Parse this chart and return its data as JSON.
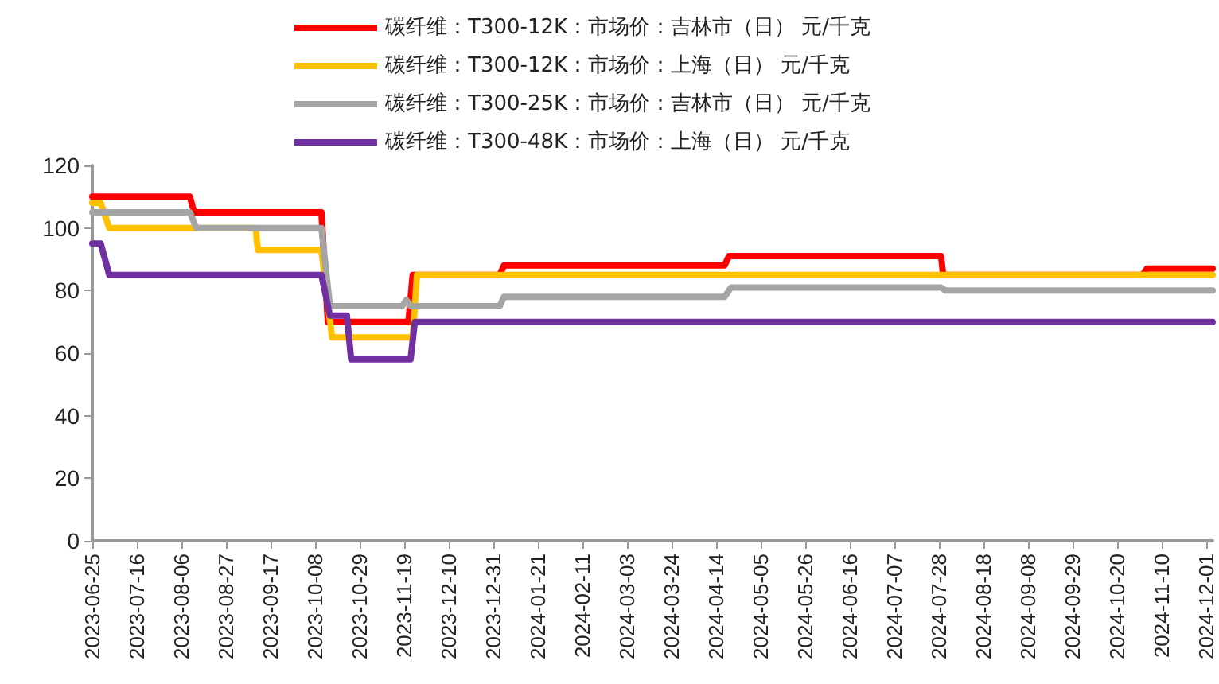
{
  "chart_data": {
    "type": "line",
    "legend": "top",
    "marker": "none",
    "line_style": "solid",
    "grid": false,
    "xlim": [
      "2023-06-25",
      "2024-12-04"
    ],
    "xticks": [
      "2023-06-25",
      "2023-07-16",
      "2023-08-06",
      "2023-08-27",
      "2023-09-17",
      "2023-10-08",
      "2023-10-29",
      "2023-11-19",
      "2023-12-10",
      "2023-12-31",
      "2024-01-21",
      "2024-02-11",
      "2024-03-03",
      "2024-03-24",
      "2024-04-14",
      "2024-05-05",
      "2024-05-26",
      "2024-06-16",
      "2024-07-07",
      "2024-07-28",
      "2024-08-18",
      "2024-09-08",
      "2024-09-29",
      "2024-10-20",
      "2024-11-10",
      "2024-12-01"
    ],
    "ylim": [
      0,
      120
    ],
    "yticks": [
      0,
      20,
      40,
      60,
      80,
      100,
      120
    ],
    "series": [
      {
        "name": "碳纤维：T300-12K：市场价：吉林市（日） 元/千克",
        "color": "#ff0000",
        "x": [
          "2023-06-25",
          "2023-08-10",
          "2023-08-12",
          "2023-10-11",
          "2023-10-14",
          "2023-11-21",
          "2023-11-23",
          "2024-01-03",
          "2024-01-05",
          "2024-04-18",
          "2024-04-20",
          "2024-07-29",
          "2024-07-30",
          "2024-11-01",
          "2024-11-03",
          "2024-12-04"
        ],
        "values": [
          110,
          110,
          105,
          105,
          70,
          70,
          85,
          85,
          88,
          88,
          91,
          91,
          85,
          85,
          87,
          87
        ]
      },
      {
        "name": "碳纤维：T300-12K：市场价：上海（日） 元/千克",
        "color": "#ffc000",
        "x": [
          "2023-06-25",
          "2023-06-29",
          "2023-07-03",
          "2023-09-10",
          "2023-09-11",
          "2023-10-11",
          "2023-10-16",
          "2023-11-23",
          "2023-11-25",
          "2024-12-04"
        ],
        "values": [
          108,
          108,
          100,
          100,
          93,
          93,
          65,
          65,
          85,
          85
        ]
      },
      {
        "name": "碳纤维：T300-25K：市场价：吉林市（日） 元/千克",
        "color": "#a5a5a5",
        "x": [
          "2023-06-25",
          "2023-08-10",
          "2023-08-13",
          "2023-10-11",
          "2023-10-15",
          "2023-11-18",
          "2023-11-20",
          "2023-11-22",
          "2024-01-03",
          "2024-01-05",
          "2024-04-18",
          "2024-04-21",
          "2024-07-29",
          "2024-07-31",
          "2024-12-04"
        ],
        "values": [
          105,
          105,
          100,
          100,
          75,
          75,
          77,
          75,
          75,
          78,
          78,
          81,
          81,
          80,
          80
        ]
      },
      {
        "name": "碳纤维：T300-48K：市场价：上海（日） 元/千克",
        "color": "#7030a0",
        "x": [
          "2023-06-25",
          "2023-06-29",
          "2023-07-03",
          "2023-10-11",
          "2023-10-15",
          "2023-10-23",
          "2023-10-25",
          "2023-11-22",
          "2023-11-24",
          "2024-12-04"
        ],
        "values": [
          95,
          95,
          85,
          85,
          72,
          72,
          58,
          58,
          70,
          70
        ]
      }
    ]
  }
}
